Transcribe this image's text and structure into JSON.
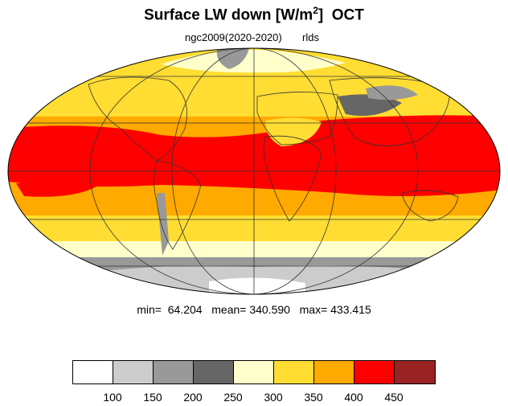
{
  "title": {
    "main": "Surface LW down [W/m",
    "superscript": "2",
    "close": "]",
    "month": "OCT"
  },
  "subtitle": {
    "case": "ngc2009(2020-2020)",
    "variable": "rlds"
  },
  "stats": {
    "text": "min=  64.204   mean= 340.590   max= 433.415"
  },
  "colorbar": {
    "colors": [
      "#ffffff",
      "#cccccc",
      "#999999",
      "#666666",
      "#ffffcc",
      "#ffdd33",
      "#ffaa00",
      "#ff0000",
      "#992222"
    ],
    "labels": [
      "100",
      "150",
      "200",
      "250",
      "300",
      "350",
      "400",
      "450"
    ]
  }
}
